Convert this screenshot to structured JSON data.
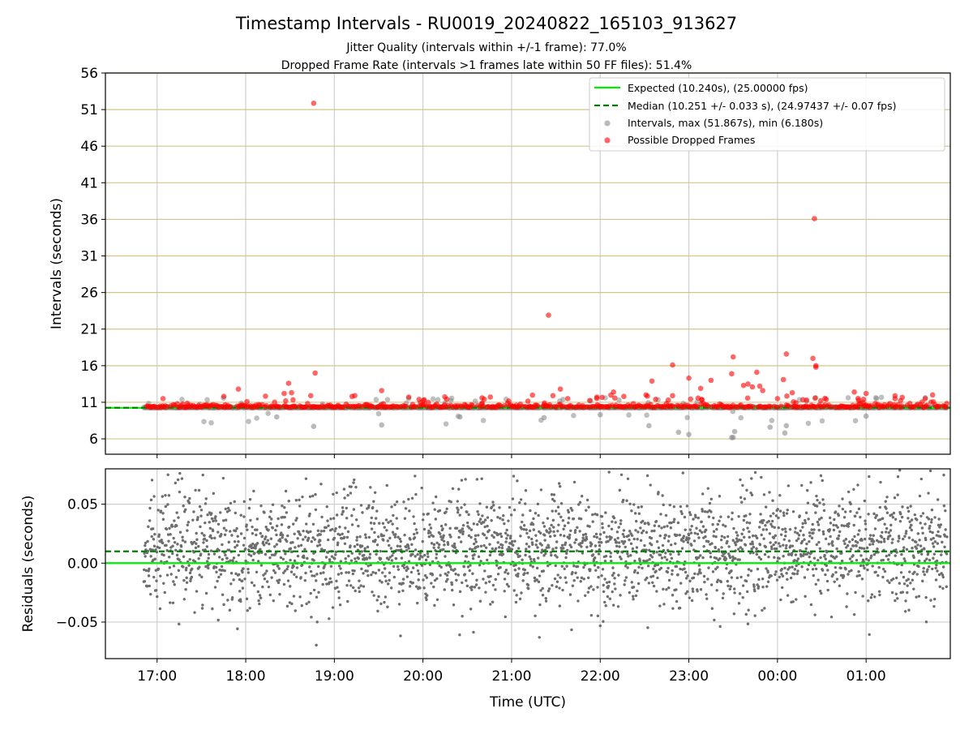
{
  "title": "Timestamp Intervals - RU0019_20240822_165103_913627",
  "subtitle1": "Jitter Quality (intervals within +/-1 frame): 77.0%",
  "subtitle2": "Dropped Frame Rate (intervals >1 frames late within 50 FF files): 51.4%",
  "colors": {
    "expected": "#00ee00",
    "median": "#008000",
    "intervals": "#808080",
    "dropped": "#ff0000",
    "ygrid_top": "#d4c48a",
    "grid": "#cfcfcf"
  },
  "chart_data": [
    {
      "type": "scatter",
      "ylabel": "Intervals (seconds)",
      "ylim": [
        3.9,
        56
      ],
      "yticks": [
        "6",
        "11",
        "16",
        "21",
        "26",
        "31",
        "36",
        "41",
        "46",
        "51",
        "56"
      ],
      "xlim": [
        "16:25",
        "01:57"
      ],
      "grid": true,
      "legend_position": "top-right",
      "legend": [
        "Expected (10.240s), (25.00000 fps)",
        "Median (10.251 +/- 0.033 s), (24.97437 +/- 0.07 fps)",
        "Intervals, max (51.867s), min (6.180s)",
        "Possible Dropped Frames"
      ],
      "expected": 10.24,
      "median": 10.251,
      "intervals_max": 51.867,
      "intervals_min": 6.18,
      "dropped_frames_sample": [
        {
          "x": "18:46",
          "y": 51.867
        },
        {
          "x": "00:25",
          "y": 36.1
        },
        {
          "x": "21:25",
          "y": 22.9
        },
        {
          "x": "00:06",
          "y": 17.6
        },
        {
          "x": "23:30",
          "y": 17.2
        },
        {
          "x": "00:24",
          "y": 17.0
        },
        {
          "x": "22:49",
          "y": 16.1
        },
        {
          "x": "00:26",
          "y": 15.8
        },
        {
          "x": "00:26",
          "y": 16.0
        },
        {
          "x": "18:47",
          "y": 15.0
        },
        {
          "x": "23:46",
          "y": 15.1
        },
        {
          "x": "23:29",
          "y": 14.9
        },
        {
          "x": "23:00",
          "y": 14.3
        },
        {
          "x": "00:04",
          "y": 14.1
        },
        {
          "x": "23:15",
          "y": 14.0
        },
        {
          "x": "22:35",
          "y": 13.9
        },
        {
          "x": "18:29",
          "y": 13.6
        },
        {
          "x": "23:40",
          "y": 13.5
        },
        {
          "x": "23:43",
          "y": 13.1
        },
        {
          "x": "23:37",
          "y": 13.3
        },
        {
          "x": "23:48",
          "y": 13.2
        },
        {
          "x": "17:55",
          "y": 12.8
        },
        {
          "x": "23:08",
          "y": 12.9
        },
        {
          "x": "21:33",
          "y": 12.8
        },
        {
          "x": "19:32",
          "y": 12.6
        },
        {
          "x": "22:09",
          "y": 12.4
        },
        {
          "x": "23:50",
          "y": 12.6
        },
        {
          "x": "00:10",
          "y": 12.3
        },
        {
          "x": "00:52",
          "y": 12.4
        },
        {
          "x": "18:26",
          "y": 12.2
        },
        {
          "x": "18:31",
          "y": 12.3
        },
        {
          "x": "01:00",
          "y": 12.2
        },
        {
          "x": "22:31",
          "y": 12.0
        },
        {
          "x": "22:49",
          "y": 11.9
        },
        {
          "x": "18:44",
          "y": 11.9
        },
        {
          "x": "22:16",
          "y": 11.8
        },
        {
          "x": "19:12",
          "y": 11.8
        },
        {
          "x": "21:28",
          "y": 11.9
        },
        {
          "x": "20:40",
          "y": 11.6
        },
        {
          "x": "21:38",
          "y": 11.5
        },
        {
          "x": "17:04",
          "y": 11.5
        },
        {
          "x": "00:00",
          "y": 11.5
        },
        {
          "x": "00:33",
          "y": 11.4
        },
        {
          "x": "01:45",
          "y": 12.0
        },
        {
          "x": "01:40",
          "y": 11.5
        }
      ]
    },
    {
      "type": "scatter",
      "ylabel": "Residuals (seconds)",
      "xlabel": "Time (UTC)",
      "ylim": [
        -0.081,
        0.08
      ],
      "yticks": [
        "−0.05",
        "0.00",
        "0.05"
      ],
      "xticks": [
        "17:00",
        "18:00",
        "19:00",
        "20:00",
        "21:00",
        "22:00",
        "23:00",
        "00:00",
        "01:00"
      ],
      "xlim": [
        "16:25",
        "01:57"
      ],
      "expected_residual": 0.0,
      "median_residual": 0.01,
      "grid": true
    }
  ]
}
